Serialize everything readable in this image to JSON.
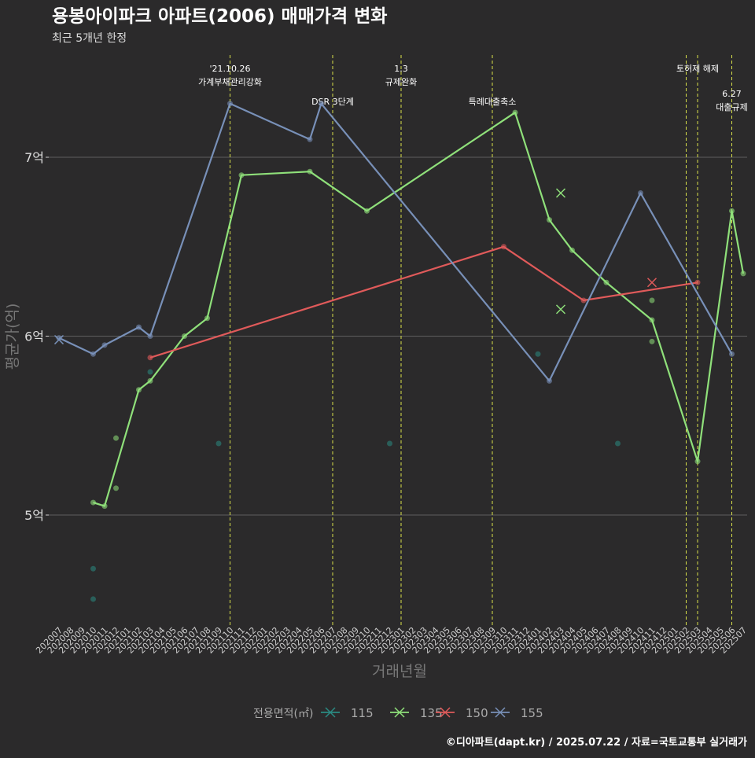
{
  "title": "용봉아이파크 아파트(2006) 매매가격 변화",
  "subtitle": "최근 5개년 한정",
  "footer": "©디아파트(dapt.kr) / 2025.07.22 / 자료=국토교통부 실거래가",
  "colors": {
    "background": "#2b2a2b",
    "grid": "#5f5f5f",
    "vline": "#d8e04a",
    "s115": "#2a8a82",
    "s135": "#8fe07a",
    "s150": "#e05a5a",
    "s155": "#7890b8"
  },
  "chart_data": {
    "type": "line",
    "xlabel": "거래년월",
    "ylabel": "평균가(억)",
    "y_ticks": [
      {
        "v": 5,
        "label": "5억"
      },
      {
        "v": 6,
        "label": "6억"
      },
      {
        "v": 7,
        "label": "7억"
      }
    ],
    "ylim": [
      4.4,
      7.6
    ],
    "grid": true,
    "legend_position": "bottom",
    "legend_title": "전용면적(㎡)",
    "x": [
      "202007",
      "202008",
      "202009",
      "202010",
      "202011",
      "202012",
      "202101",
      "202102",
      "202103",
      "202104",
      "202105",
      "202106",
      "202107",
      "202108",
      "202109",
      "202110",
      "202111",
      "202112",
      "202201",
      "202202",
      "202203",
      "202204",
      "202205",
      "202206",
      "202207",
      "202208",
      "202209",
      "202210",
      "202211",
      "202212",
      "202301",
      "202302",
      "202303",
      "202304",
      "202305",
      "202306",
      "202307",
      "202308",
      "202309",
      "202310",
      "202311",
      "202312",
      "202401",
      "202402",
      "202403",
      "202404",
      "202405",
      "202406",
      "202407",
      "202408",
      "202409",
      "202410",
      "202411",
      "202412",
      "202501",
      "202502",
      "202503",
      "202504",
      "202505",
      "202506",
      "202507"
    ],
    "series": [
      {
        "name": "115",
        "color": "#2a8a82",
        "line": [],
        "points": [
          {
            "x": "202010",
            "y": 4.7
          },
          {
            "x": "202010",
            "y": 4.53
          },
          {
            "x": "202103",
            "y": 5.8
          },
          {
            "x": "202109",
            "y": 5.4
          },
          {
            "x": "202212",
            "y": 5.4
          },
          {
            "x": "202401",
            "y": 5.9
          },
          {
            "x": "202408",
            "y": 5.4
          }
        ],
        "x_marks": []
      },
      {
        "name": "135",
        "color": "#8fe07a",
        "line": [
          {
            "x": "202010",
            "y": 5.07
          },
          {
            "x": "202011",
            "y": 5.05
          },
          {
            "x": "202102",
            "y": 5.7
          },
          {
            "x": "202103",
            "y": 5.75
          },
          {
            "x": "202106",
            "y": 6.0
          },
          {
            "x": "202108",
            "y": 6.1
          },
          {
            "x": "202111",
            "y": 6.9
          },
          {
            "x": "202205",
            "y": 6.92
          },
          {
            "x": "202210",
            "y": 6.7
          },
          {
            "x": "202311",
            "y": 7.25
          },
          {
            "x": "202402",
            "y": 6.65
          },
          {
            "x": "202404",
            "y": 6.48
          },
          {
            "x": "202407",
            "y": 6.3
          },
          {
            "x": "202411",
            "y": 6.09
          },
          {
            "x": "202503",
            "y": 5.3
          },
          {
            "x": "202506",
            "y": 6.7
          },
          {
            "x": "202507",
            "y": 6.35
          }
        ],
        "points": [
          {
            "x": "202012",
            "y": 5.43
          },
          {
            "x": "202012",
            "y": 5.15
          },
          {
            "x": "202411",
            "y": 6.2
          },
          {
            "x": "202411",
            "y": 5.97
          }
        ],
        "x_marks": [
          {
            "x": "202403",
            "y": 6.8
          },
          {
            "x": "202403",
            "y": 6.15
          }
        ]
      },
      {
        "name": "150",
        "color": "#e05a5a",
        "line": [
          {
            "x": "202103",
            "y": 5.88
          },
          {
            "x": "202310",
            "y": 6.5
          },
          {
            "x": "202405",
            "y": 6.2
          },
          {
            "x": "202503",
            "y": 6.3
          }
        ],
        "points": [],
        "x_marks": [
          {
            "x": "202411",
            "y": 6.3
          }
        ]
      },
      {
        "name": "155",
        "color": "#7890b8",
        "line": [
          {
            "x": "202007",
            "y": 5.99
          },
          {
            "x": "202010",
            "y": 5.9
          },
          {
            "x": "202011",
            "y": 5.95
          },
          {
            "x": "202102",
            "y": 6.05
          },
          {
            "x": "202103",
            "y": 6.0
          },
          {
            "x": "202110",
            "y": 7.3
          },
          {
            "x": "202205",
            "y": 7.1
          },
          {
            "x": "202206",
            "y": 7.3
          },
          {
            "x": "202402",
            "y": 5.75
          },
          {
            "x": "202410",
            "y": 6.8
          },
          {
            "x": "202506",
            "y": 5.9
          }
        ],
        "points": [],
        "x_marks": [
          {
            "x": "202007",
            "y": 5.98
          }
        ]
      }
    ],
    "events": [
      {
        "x": "202110",
        "lines": [
          "'21.10.26",
          "가계부채관리강화"
        ],
        "row": 0
      },
      {
        "x": "202207",
        "lines": [
          "DSR 3단계"
        ],
        "row": 1
      },
      {
        "x": "202301",
        "lines": [
          "1.3",
          "규제완화"
        ],
        "row": 0
      },
      {
        "x": "202309",
        "lines": [
          "특례대출축소"
        ],
        "row": 1
      },
      {
        "x": "202502",
        "lines": [],
        "row": 0
      },
      {
        "x": "202503",
        "lines": [
          "토허제 해제"
        ],
        "row": 0
      },
      {
        "x": "202506",
        "lines": [
          "6.27",
          "대출규제"
        ],
        "row": 2
      }
    ]
  }
}
